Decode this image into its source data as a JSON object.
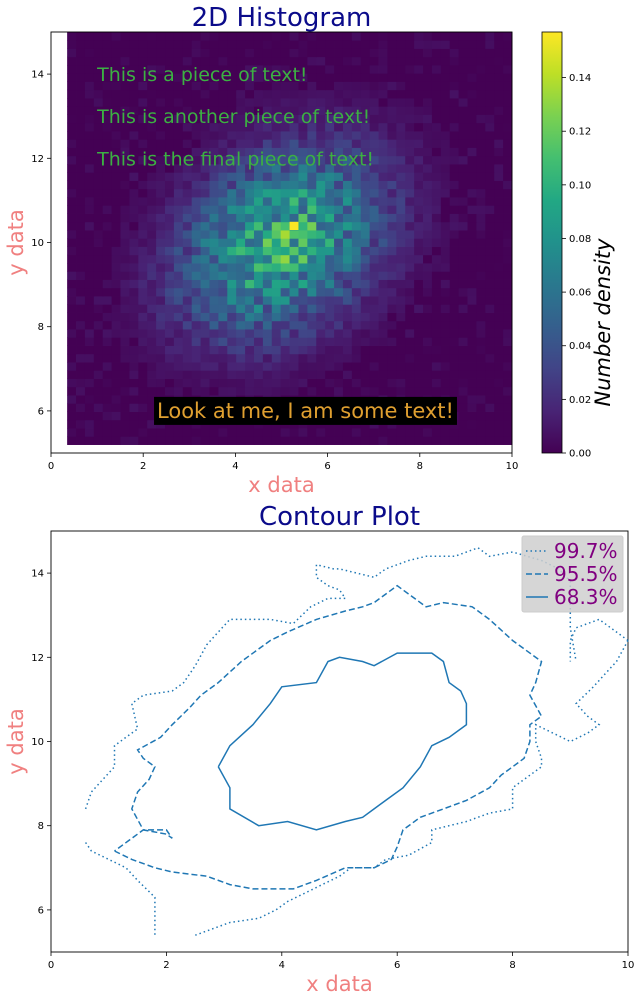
{
  "chart_data": [
    {
      "type": "heatmap",
      "title": "2D Histogram",
      "xlabel": "x data",
      "ylabel": "y data",
      "xlim": [
        0,
        10
      ],
      "ylim": [
        5,
        15
      ],
      "xticks": [
        "0",
        "2",
        "4",
        "6",
        "8",
        "10"
      ],
      "yticks": [
        "6",
        "8",
        "10",
        "12",
        "14"
      ],
      "colormap": "viridis",
      "color_range": [
        0.0,
        0.157
      ],
      "colorbar": {
        "label": "Number density",
        "ticks": [
          "0.00",
          "0.02",
          "0.04",
          "0.06",
          "0.08",
          "0.10",
          "0.12",
          "0.14"
        ],
        "tick_values": [
          0.0,
          0.02,
          0.04,
          0.06,
          0.08,
          0.1,
          0.12,
          0.14
        ]
      },
      "bins_x": 50,
      "bins_y": 50,
      "data_extent": {
        "x": [
          0.35,
          10.0
        ],
        "y": [
          5.2,
          15.0
        ]
      },
      "distribution": {
        "center": [
          5.0,
          10.0
        ],
        "std": [
          1.5,
          1.5
        ],
        "correlation": 0.3,
        "peak_density": 0.157,
        "peak_at": [
          5.35,
          10.3
        ]
      },
      "annotations": [
        {
          "text": "This is a piece of text!",
          "color": "#3cb043",
          "x": 1.0,
          "y": 14.0
        },
        {
          "text": "This is another piece of text!",
          "color": "#3cb043",
          "x": 1.0,
          "y": 13.0
        },
        {
          "text": "This is the final piece of text!",
          "color": "#3cb043",
          "x": 1.0,
          "y": 12.0
        },
        {
          "text": "Look at me, I am some text!",
          "color": "#e0a030",
          "background": "#000000",
          "x": 2.3,
          "y": 6.0
        }
      ]
    },
    {
      "type": "line",
      "title": "Contour Plot",
      "xlabel": "x data",
      "ylabel": "y data",
      "xlim": [
        0,
        10
      ],
      "ylim": [
        5,
        15
      ],
      "xticks": [
        "0",
        "2",
        "4",
        "6",
        "8",
        "10"
      ],
      "yticks": [
        "6",
        "8",
        "10",
        "12",
        "14"
      ],
      "legend": {
        "position": "top-right"
      },
      "series": [
        {
          "name": "99.7%",
          "style": "dotted",
          "color": "#1f77b4",
          "paths": [
            [
              [
                0.6,
                8.4
              ],
              [
                0.7,
                8.8
              ],
              [
                0.9,
                9.1
              ],
              [
                1.1,
                9.4
              ],
              [
                1.1,
                9.9
              ],
              [
                1.3,
                10.1
              ],
              [
                1.5,
                10.3
              ],
              [
                1.4,
                10.9
              ],
              [
                1.6,
                11.1
              ],
              [
                2.1,
                11.2
              ],
              [
                2.3,
                11.4
              ],
              [
                2.5,
                11.8
              ],
              [
                2.7,
                12.3
              ],
              [
                2.9,
                12.6
              ],
              [
                3.1,
                12.9
              ],
              [
                3.8,
                12.9
              ],
              [
                4.2,
                12.8
              ],
              [
                4.5,
                13.2
              ],
              [
                4.8,
                13.4
              ],
              [
                5.1,
                13.4
              ],
              [
                5.0,
                13.6
              ],
              [
                4.8,
                13.7
              ],
              [
                4.6,
                13.9
              ],
              [
                4.6,
                14.2
              ],
              [
                4.9,
                14.1
              ],
              [
                5.0,
                14.1
              ],
              [
                5.6,
                13.9
              ],
              [
                5.8,
                14.1
              ],
              [
                6.2,
                14.3
              ],
              [
                6.5,
                14.4
              ],
              [
                7.0,
                14.4
              ],
              [
                7.4,
                14.6
              ],
              [
                7.6,
                14.4
              ],
              [
                8.0,
                14.5
              ],
              [
                8.5,
                14.3
              ],
              [
                8.8,
                14.1
              ],
              [
                9.0,
                13.8
              ],
              [
                9.0,
                12.7
              ],
              [
                9.1,
                11.9
              ]
            ],
            [
              [
                10.0,
                12.4
              ],
              [
                9.8,
                12.6
              ],
              [
                9.5,
                12.9
              ],
              [
                9.1,
                12.7
              ],
              [
                9.0,
                12.4
              ],
              [
                9.0,
                11.9
              ]
            ],
            [
              [
                10.0,
                12.4
              ],
              [
                9.8,
                11.9
              ],
              [
                9.6,
                11.6
              ],
              [
                9.4,
                11.3
              ],
              [
                9.1,
                10.9
              ],
              [
                9.3,
                10.6
              ],
              [
                9.5,
                10.4
              ],
              [
                9.3,
                10.2
              ],
              [
                9.0,
                10.0
              ],
              [
                8.7,
                10.2
              ],
              [
                8.4,
                10.4
              ],
              [
                8.4,
                10.0
              ],
              [
                8.5,
                9.6
              ],
              [
                8.5,
                9.4
              ],
              [
                8.3,
                9.2
              ],
              [
                8.0,
                8.9
              ],
              [
                8.0,
                8.4
              ],
              [
                7.6,
                8.3
              ],
              [
                7.2,
                8.1
              ],
              [
                6.9,
                8.0
              ],
              [
                6.6,
                7.9
              ],
              [
                6.6,
                7.6
              ],
              [
                6.2,
                7.3
              ],
              [
                5.8,
                7.2
              ],
              [
                5.6,
                7.0
              ],
              [
                5.2,
                7.0
              ],
              [
                5.0,
                6.8
              ],
              [
                4.7,
                6.6
              ],
              [
                4.4,
                6.4
              ],
              [
                4.1,
                6.2
              ],
              [
                3.9,
                6.0
              ],
              [
                3.6,
                5.8
              ],
              [
                3.1,
                5.7
              ],
              [
                2.9,
                5.6
              ],
              [
                2.5,
                5.4
              ]
            ],
            [
              [
                0.6,
                7.6
              ],
              [
                0.7,
                7.4
              ],
              [
                1.0,
                7.2
              ],
              [
                1.3,
                7.0
              ],
              [
                1.5,
                6.7
              ],
              [
                1.8,
                6.3
              ],
              [
                1.8,
                5.4
              ]
            ]
          ]
        },
        {
          "name": "95.5%",
          "style": "dashed",
          "color": "#1f77b4",
          "paths": [
            [
              [
                1.1,
                7.4
              ],
              [
                1.4,
                7.2
              ],
              [
                1.8,
                7.0
              ],
              [
                2.1,
                6.9
              ],
              [
                2.7,
                6.8
              ],
              [
                3.1,
                6.6
              ],
              [
                3.5,
                6.5
              ],
              [
                4.2,
                6.5
              ],
              [
                4.6,
                6.7
              ],
              [
                5.1,
                7.0
              ],
              [
                5.6,
                7.0
              ],
              [
                5.9,
                7.2
              ],
              [
                6.0,
                7.5
              ],
              [
                6.1,
                7.9
              ],
              [
                6.4,
                8.2
              ],
              [
                6.8,
                8.4
              ],
              [
                7.2,
                8.6
              ],
              [
                7.6,
                8.9
              ],
              [
                7.8,
                9.2
              ],
              [
                8.0,
                9.4
              ],
              [
                8.2,
                9.6
              ],
              [
                8.3,
                10.0
              ],
              [
                8.3,
                10.4
              ],
              [
                8.5,
                10.6
              ],
              [
                8.3,
                11.1
              ],
              [
                8.4,
                11.4
              ],
              [
                8.5,
                11.9
              ],
              [
                8.0,
                12.4
              ],
              [
                7.6,
                12.9
              ],
              [
                7.3,
                13.2
              ],
              [
                6.8,
                13.3
              ],
              [
                6.5,
                13.2
              ],
              [
                6.0,
                13.7
              ],
              [
                5.6,
                13.3
              ],
              [
                5.4,
                13.2
              ],
              [
                5.1,
                13.1
              ],
              [
                4.6,
                12.9
              ],
              [
                4.1,
                12.6
              ],
              [
                3.8,
                12.4
              ],
              [
                3.3,
                11.9
              ],
              [
                2.9,
                11.4
              ],
              [
                2.6,
                11.1
              ],
              [
                2.4,
                10.8
              ],
              [
                2.1,
                10.4
              ],
              [
                1.9,
                10.1
              ],
              [
                1.5,
                9.8
              ],
              [
                1.6,
                9.6
              ],
              [
                1.8,
                9.4
              ],
              [
                1.7,
                9.1
              ],
              [
                1.5,
                8.8
              ],
              [
                1.4,
                8.4
              ],
              [
                1.6,
                7.9
              ],
              [
                2.0,
                7.8
              ],
              [
                2.1,
                7.7
              ],
              [
                2.0,
                7.9
              ],
              [
                1.6,
                7.9
              ],
              [
                1.1,
                7.4
              ]
            ]
          ]
        },
        {
          "name": "68.3%",
          "style": "solid",
          "color": "#1f77b4",
          "paths": [
            [
              [
                2.9,
                9.4
              ],
              [
                3.1,
                9.9
              ],
              [
                3.5,
                10.4
              ],
              [
                3.8,
                10.9
              ],
              [
                4.0,
                11.3
              ],
              [
                4.6,
                11.4
              ],
              [
                4.8,
                11.9
              ],
              [
                5.0,
                12.0
              ],
              [
                5.4,
                11.9
              ],
              [
                5.6,
                11.8
              ],
              [
                6.0,
                12.1
              ],
              [
                6.6,
                12.1
              ],
              [
                6.8,
                11.9
              ],
              [
                6.9,
                11.4
              ],
              [
                7.1,
                11.2
              ],
              [
                7.2,
                10.9
              ],
              [
                7.2,
                10.4
              ],
              [
                6.9,
                10.1
              ],
              [
                6.6,
                9.9
              ],
              [
                6.4,
                9.4
              ],
              [
                6.1,
                8.9
              ],
              [
                5.8,
                8.6
              ],
              [
                5.6,
                8.4
              ],
              [
                5.4,
                8.2
              ],
              [
                5.1,
                8.1
              ],
              [
                4.6,
                7.9
              ],
              [
                4.1,
                8.1
              ],
              [
                3.6,
                8.0
              ],
              [
                3.1,
                8.4
              ],
              [
                3.1,
                8.9
              ],
              [
                2.9,
                9.4
              ]
            ]
          ]
        }
      ]
    }
  ]
}
